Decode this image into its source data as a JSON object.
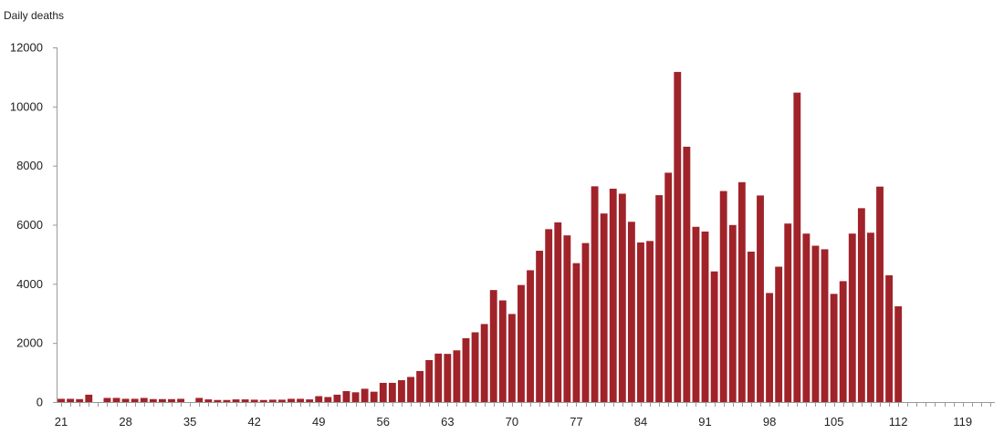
{
  "chart_data": {
    "type": "bar",
    "title": "",
    "xlabel": "",
    "ylabel": "Daily deaths",
    "xlim": [
      20.5,
      122.5
    ],
    "ylim": [
      0,
      12000
    ],
    "x_ticks": [
      21,
      28,
      35,
      42,
      49,
      56,
      63,
      70,
      77,
      84,
      91,
      98,
      105,
      112,
      119
    ],
    "y_ticks": [
      0,
      2000,
      4000,
      6000,
      8000,
      10000,
      12000
    ],
    "grid": false,
    "legend": "none",
    "bar_color": "#a0232a",
    "series": [
      {
        "x": [
          21,
          22,
          23,
          24,
          25,
          26,
          27,
          28,
          29,
          30,
          31,
          32,
          33,
          34,
          35,
          36,
          37,
          38,
          39,
          40,
          41,
          42,
          43,
          44,
          45,
          46,
          47,
          48,
          49,
          50,
          51,
          52,
          53,
          54,
          55,
          56,
          57,
          58,
          59,
          60,
          61,
          62,
          63,
          64,
          65,
          66,
          67,
          68,
          69,
          70,
          71,
          72,
          73,
          74,
          75,
          76,
          77,
          78,
          79,
          80,
          81,
          82,
          83,
          84,
          85,
          86,
          87,
          88,
          89,
          90,
          91,
          92,
          93,
          94,
          95,
          96,
          97,
          98,
          99,
          100,
          101,
          102,
          103,
          104,
          105,
          106,
          107,
          108,
          109,
          110,
          111,
          112
        ],
        "values": [
          110,
          110,
          100,
          250,
          0,
          140,
          140,
          110,
          110,
          140,
          100,
          100,
          100,
          110,
          0,
          140,
          90,
          70,
          70,
          90,
          90,
          80,
          70,
          80,
          80,
          110,
          110,
          90,
          200,
          170,
          250,
          370,
          330,
          450,
          350,
          650,
          650,
          740,
          850,
          1050,
          1420,
          1640,
          1630,
          1750,
          2160,
          2360,
          2640,
          3790,
          3440,
          2980,
          3960,
          4460,
          5120,
          5850,
          6080,
          5640,
          4700,
          5380,
          7300,
          6380,
          7220,
          7050,
          6100,
          5400,
          5450,
          7000,
          7760,
          11170,
          8640,
          5930,
          5770,
          4420,
          7140,
          5990,
          7440,
          5090,
          6990,
          3690,
          4580,
          6040,
          10470,
          5700,
          5290,
          5170,
          3660,
          4090,
          5700,
          6560,
          5730,
          7290,
          4290,
          3240
        ]
      }
    ]
  }
}
